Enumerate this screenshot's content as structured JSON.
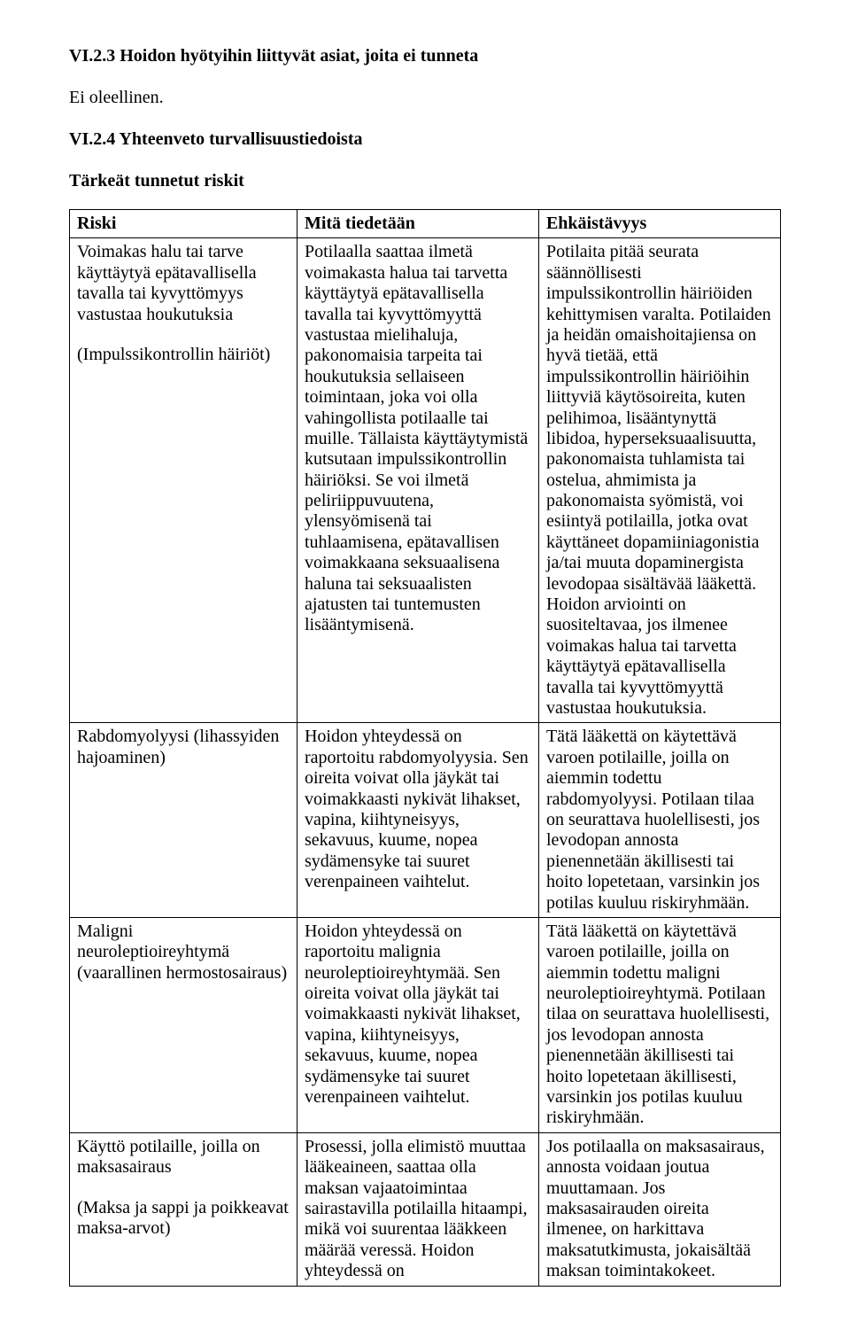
{
  "section": {
    "heading_a": "VI.2.3 Hoidon hyötyihin liittyvät asiat, joita ei tunneta",
    "para_a": "Ei oleellinen.",
    "heading_b": "VI.2.4 Yhteenveto turvallisuustiedoista",
    "subheading": "Tärkeät tunnetut riskit"
  },
  "table": {
    "headers": {
      "risk": "Riski",
      "known": "Mitä tiedetään",
      "prevent": "Ehkäistävyys"
    },
    "rows": [
      {
        "risk_blocks": [
          "Voimakas halu tai tarve käyttäytyä epätavallisella tavalla tai kyvyttömyys vastustaa houkutuksia",
          "(Impulssikontrollin häiriöt)"
        ],
        "known": "Potilaalla saattaa ilmetä voimakasta halua tai tarvetta käyttäytyä epätavallisella tavalla tai kyvyttömyyttä vastustaa mielihaluja, pakonomaisia tarpeita tai houkutuksia sellaiseen toimintaan, joka voi olla vahingollista potilaalle tai muille. Tällaista käyttäytymistä kutsutaan impulssikontrollin häiriöksi. Se voi ilmetä peliriippuvuutena, ylensyömisenä tai tuhlaamisena, epätavallisen voimakkaana seksuaalisena haluna tai seksuaalisten ajatusten tai tuntemusten lisääntymisenä.",
        "prevent": "Potilaita pitää seurata säännöllisesti impulssikontrollin häiriöiden kehittymisen varalta. Potilaiden ja heidän omaishoitajiensa on hyvä tietää, että impulssikontrollin häiriöihin liittyviä käytösoireita, kuten pelihimoa, lisääntynyttä libidoa, hyperseksuaalisuutta, pakonomaista tuhlamista tai ostelua, ahmimista ja pakonomaista syömistä, voi esiintyä potilailla, jotka ovat käyttäneet dopamiiniagonistia ja/tai muuta dopaminergista levodopaa sisältävää lääkettä. Hoidon arviointi on suositeltavaa, jos ilmenee voimakas halua tai tarvetta käyttäytyä epätavallisella tavalla tai kyvyttömyyttä vastustaa houkutuksia."
      },
      {
        "risk_blocks": [
          "Rabdomyolyysi (lihassyiden hajoaminen)"
        ],
        "known": "Hoidon yhteydessä on raportoitu rabdomyolyysia. Sen oireita voivat olla jäykät tai voimakkaasti nykivät lihakset, vapina, kiihtyneisyys, sekavuus, kuume, nopea sydämensyke tai suuret verenpaineen vaihtelut.",
        "prevent": "Tätä lääkettä on käytettävä varoen potilaille, joilla on aiemmin todettu rabdomyolyysi. Potilaan tilaa on seurattava huolellisesti, jos levodopan annosta pienennetään äkillisesti tai hoito lopetetaan, varsinkin jos potilas kuuluu riskiryhmään."
      },
      {
        "risk_blocks": [
          "Maligni neuroleptioireyhtymä (vaarallinen hermostosairaus)"
        ],
        "known": "Hoidon yhteydessä on raportoitu malignia neuroleptioireyhtymää. Sen oireita voivat olla jäykät tai voimakkaasti nykivät lihakset, vapina, kiihtyneisyys, sekavuus, kuume, nopea sydämensyke tai suuret verenpaineen vaihtelut.",
        "prevent": "Tätä lääkettä on käytettävä varoen potilaille, joilla on aiemmin todettu maligni neuroleptioireyhtymä. Potilaan tilaa on seurattava huolellisesti, jos levodopan annosta pienennetään äkillisesti tai hoito lopetetaan äkillisesti, varsinkin jos potilas kuuluu riskiryhmään."
      },
      {
        "risk_blocks": [
          "Käyttö potilaille, joilla on maksasairaus",
          "(Maksa ja sappi ja poikkeavat maksa-arvot)"
        ],
        "known": "Prosessi, jolla elimistö muuttaa lääkeaineen, saattaa olla maksan vajaatoimintaa sairastavilla potilailla hitaampi, mikä voi suurentaa lääkkeen määrää veressä. Hoidon yhteydessä on",
        "prevent": "Jos potilaalla on maksasairaus, annosta voidaan joutua muuttamaan. Jos maksasairauden oireita ilmenee, on harkittava maksatutkimusta, jokaisältää maksan toimintakokeet."
      }
    ]
  }
}
